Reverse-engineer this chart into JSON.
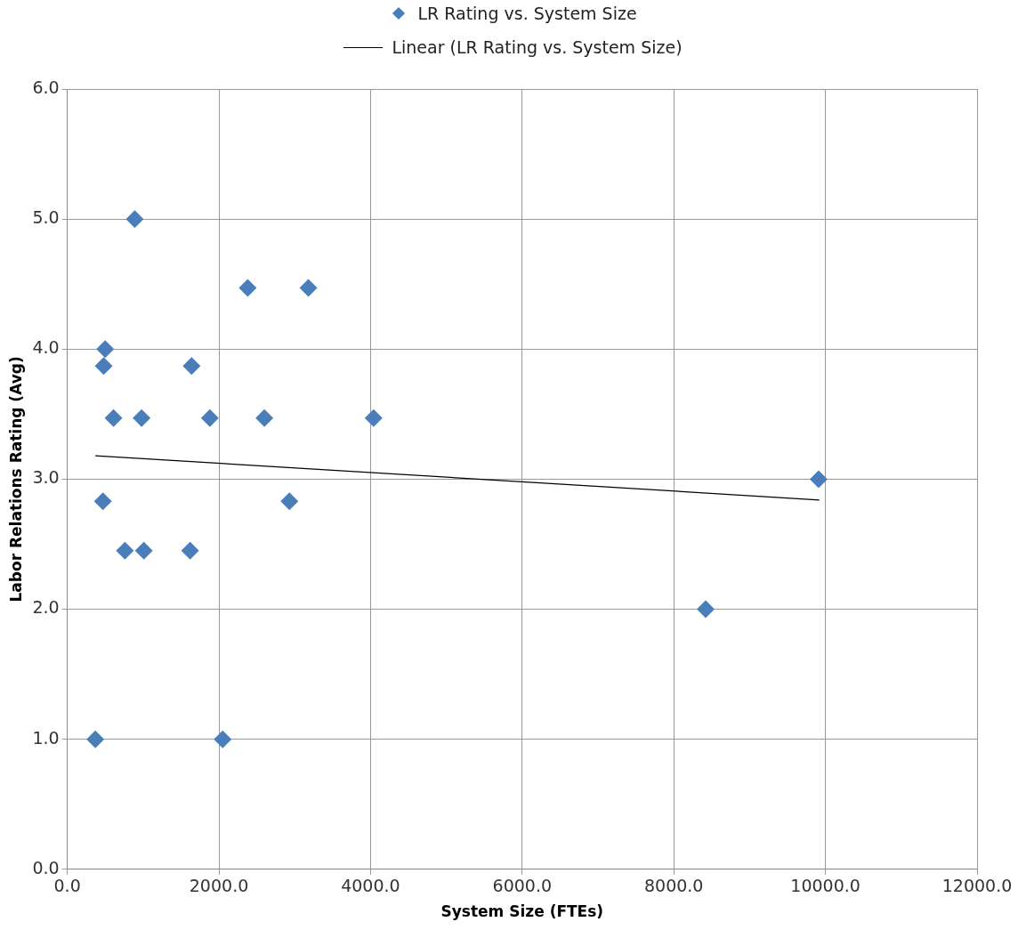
{
  "chart_data": {
    "type": "scatter",
    "xlabel": "System Size (FTEs)",
    "ylabel": "Labor Relations Rating (Avg)",
    "xlim": [
      0,
      12000
    ],
    "ylim": [
      0,
      6
    ],
    "xticks": [
      {
        "value": 0,
        "label": "0.0"
      },
      {
        "value": 2000,
        "label": "2000.0"
      },
      {
        "value": 4000,
        "label": "4000.0"
      },
      {
        "value": 6000,
        "label": "6000.0"
      },
      {
        "value": 8000,
        "label": "8000.0"
      },
      {
        "value": 10000,
        "label": "10000.0"
      },
      {
        "value": 12000,
        "label": "12000.0"
      }
    ],
    "yticks": [
      {
        "value": 0,
        "label": "0.0"
      },
      {
        "value": 1,
        "label": "1.0"
      },
      {
        "value": 2,
        "label": "2.0"
      },
      {
        "value": 3,
        "label": "3.0"
      },
      {
        "value": 4,
        "label": "4.0"
      },
      {
        "value": 5,
        "label": "5.0"
      },
      {
        "value": 6,
        "label": "6.0"
      }
    ],
    "grid": true,
    "legend": "top",
    "marker": "diamond",
    "series": [
      {
        "name": "LR Rating vs. System Size",
        "type": "scatter",
        "color": "#4a7ebb",
        "x": [
          370,
          470,
          480,
          500,
          610,
          760,
          890,
          980,
          1010,
          1620,
          1640,
          1880,
          2050,
          2380,
          2600,
          2930,
          3180,
          4040,
          8420,
          9910
        ],
        "values": [
          1.0,
          2.83,
          3.87,
          4.0,
          3.47,
          2.45,
          5.0,
          3.47,
          2.45,
          2.45,
          3.87,
          3.47,
          1.0,
          4.47,
          3.47,
          2.83,
          4.47,
          3.47,
          2.0,
          3.0
        ]
      },
      {
        "name": "Linear (LR Rating vs. System Size)",
        "type": "line",
        "color": "#000000",
        "marker": "none",
        "x": [
          370,
          9920
        ],
        "values": [
          3.18,
          2.84
        ]
      }
    ]
  }
}
